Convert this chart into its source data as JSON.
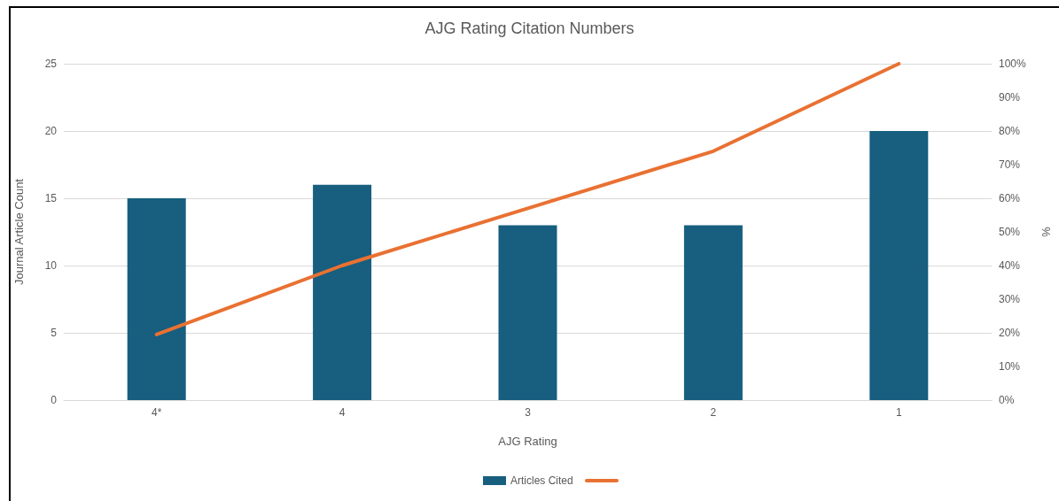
{
  "chart_data": {
    "type": "bar",
    "title": "AJG Rating Citation Numbers",
    "xlabel": "AJG Rating",
    "ylabel": "Journal Article Count",
    "y2label": "%",
    "categories": [
      "4*",
      "4",
      "3",
      "2",
      "1"
    ],
    "series": [
      {
        "name": "Articles Cited",
        "color": "#175e7f",
        "values": [
          15,
          16,
          13,
          13,
          20
        ]
      },
      {
        "type": "line",
        "axis": "y2",
        "color": "#e97132",
        "values": [
          19.5,
          40,
          57,
          74,
          100
        ]
      }
    ],
    "ylim": [
      0,
      25
    ],
    "yticks": [
      0,
      5,
      10,
      15,
      20,
      25
    ],
    "y2lim": [
      0,
      100
    ],
    "y2ticks": [
      {
        "value": 0,
        "label": "0%"
      },
      {
        "value": 10,
        "label": "10%"
      },
      {
        "value": 20,
        "label": "20%"
      },
      {
        "value": 30,
        "label": "30%"
      },
      {
        "value": 40,
        "label": "40%"
      },
      {
        "value": 50,
        "label": "50%"
      },
      {
        "value": 60,
        "label": "60%"
      },
      {
        "value": 70,
        "label": "70%"
      },
      {
        "value": 80,
        "label": "80%"
      },
      {
        "value": 90,
        "label": "90%"
      },
      {
        "value": 100,
        "label": "100%"
      }
    ],
    "grid": "y",
    "legend": "bottom",
    "marker": "none",
    "line_style": "solid"
  }
}
